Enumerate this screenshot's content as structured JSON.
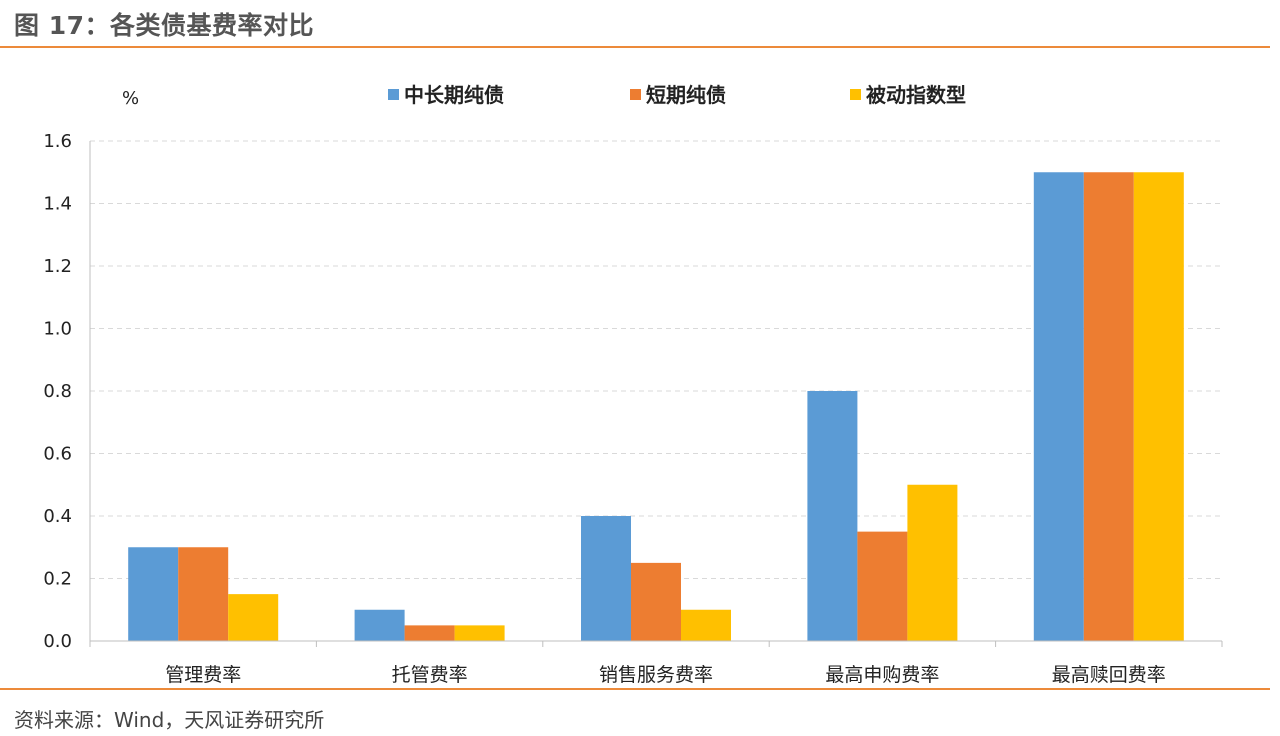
{
  "figure": {
    "title": "图 17：各类债基费率对比",
    "source": "资料来源：Wind，天风证券研究所"
  },
  "chart_data": {
    "type": "bar",
    "unit": "%",
    "categories": [
      "管理费率",
      "托管费率",
      "销售服务费率",
      "最高申购费率",
      "最高赎回费率"
    ],
    "series": [
      {
        "name": "中长期纯债",
        "color": "#5b9bd5",
        "values": [
          0.3,
          0.1,
          0.4,
          0.8,
          1.5
        ]
      },
      {
        "name": "短期纯债",
        "color": "#ed7d31",
        "values": [
          0.3,
          0.05,
          0.25,
          0.35,
          1.5
        ]
      },
      {
        "name": "被动指数型",
        "color": "#ffc000",
        "values": [
          0.15,
          0.05,
          0.1,
          0.5,
          1.5
        ]
      }
    ],
    "ylim": [
      0,
      1.6
    ],
    "yticks": [
      "0.0",
      "0.2",
      "0.4",
      "0.6",
      "0.8",
      "1.0",
      "1.2",
      "1.4",
      "1.6"
    ],
    "grid": true,
    "legend_position": "top"
  }
}
